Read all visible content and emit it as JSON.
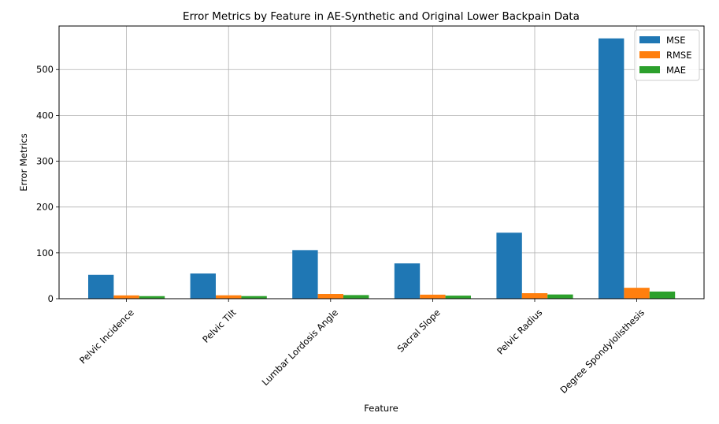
{
  "chart_data": {
    "type": "bar",
    "title": "Error Metrics by Feature in AE-Synthetic and Original Lower Backpain Data",
    "xlabel": "Feature",
    "ylabel": "Error Metrics",
    "categories": [
      "Pelvic Incidence",
      "Pelvic Tilt",
      "Lumbar Lordosis Angle",
      "Sacral Slope",
      "Pelvic Radius",
      "Degree Spondylolisthesis"
    ],
    "series": [
      {
        "name": "MSE",
        "color": "#1f77b4",
        "values": [
          52,
          55,
          106,
          77,
          144,
          568
        ]
      },
      {
        "name": "RMSE",
        "color": "#ff7f0e",
        "values": [
          7.2,
          7.4,
          10.3,
          8.8,
          12.0,
          23.8
        ]
      },
      {
        "name": "MAE",
        "color": "#2ca02c",
        "values": [
          5.6,
          5.7,
          7.9,
          6.7,
          9.2,
          15.6
        ]
      }
    ],
    "ylim": [
      0,
      595
    ],
    "yticks": [
      0,
      100,
      200,
      300,
      400,
      500
    ],
    "grid": true,
    "legend_position": "top-right"
  }
}
